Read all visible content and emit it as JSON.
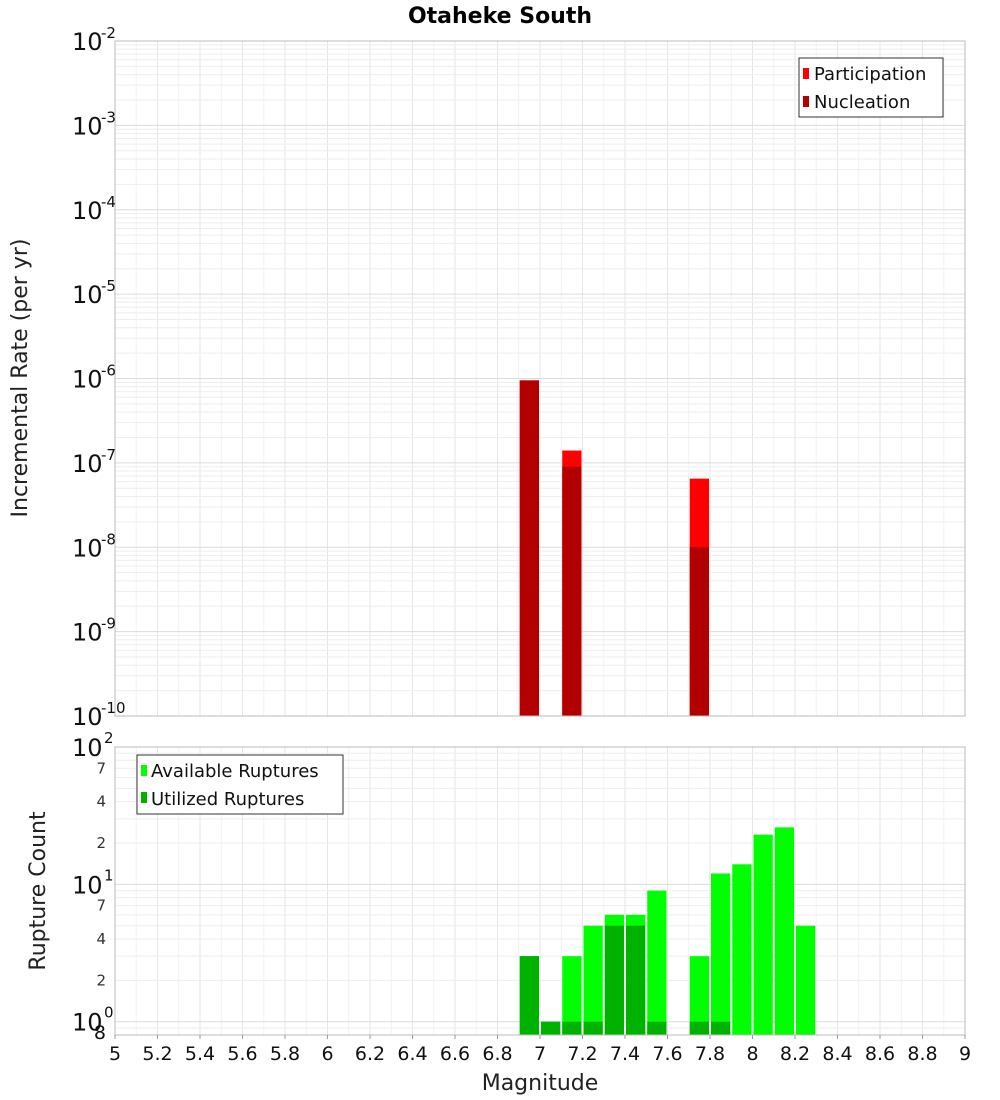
{
  "chart_data": [
    {
      "type": "bar",
      "title": "Otaheke South",
      "ylabel": "Incremental Rate (per yr)",
      "yscale": "log",
      "ylim": [
        1e-10,
        0.01
      ],
      "xlim": [
        5,
        9
      ],
      "bar_width": 0.1,
      "y_tick_exponents": [
        "-10",
        "-9",
        "-8",
        "-7",
        "-6",
        "-5",
        "-4",
        "-3",
        "-2"
      ],
      "legend": {
        "placement": "top-right",
        "entries": [
          "Participation",
          "Nucleation"
        ]
      },
      "series": [
        {
          "name": "Participation",
          "color": "#ff0000",
          "x": [
            6.95,
            7.15,
            7.75
          ],
          "values": [
            9.5e-07,
            1.4e-07,
            6.5e-08
          ]
        },
        {
          "name": "Nucleation",
          "color": "#b20000",
          "x": [
            6.95,
            7.15,
            7.75
          ],
          "values": [
            9.5e-07,
            9e-08,
            1e-08
          ]
        }
      ],
      "grid": true
    },
    {
      "type": "bar",
      "ylabel": "Rupture Count",
      "xlabel": "Magnitude",
      "yscale": "log",
      "ylim": [
        0.8,
        100
      ],
      "xlim": [
        5,
        9
      ],
      "bar_width": 0.1,
      "y_tick_labels": [
        {
          "value": 100,
          "base": "10",
          "exp": "2"
        },
        {
          "value": 10,
          "base": "10",
          "exp": "1"
        },
        {
          "value": 1,
          "base": "10",
          "exp": "0"
        }
      ],
      "y_minor_labels": [
        {
          "value": 70,
          "label": "7"
        },
        {
          "value": 40,
          "label": "4"
        },
        {
          "value": 20,
          "label": "2"
        },
        {
          "value": 7,
          "label": "7"
        },
        {
          "value": 4,
          "label": "4"
        },
        {
          "value": 2,
          "label": "2"
        },
        {
          "value": 0.8,
          "label": "8"
        }
      ],
      "x_ticks": [
        "5",
        "5.2",
        "5.4",
        "5.6",
        "5.8",
        "6",
        "6.2",
        "6.4",
        "6.6",
        "6.8",
        "7",
        "7.2",
        "7.4",
        "7.6",
        "7.8",
        "8",
        "8.2",
        "8.4",
        "8.6",
        "8.8",
        "9"
      ],
      "legend": {
        "placement": "top-left",
        "entries": [
          "Available Ruptures",
          "Utilized Ruptures"
        ]
      },
      "series": [
        {
          "name": "Available Ruptures",
          "color": "#00ff00",
          "x": [
            6.95,
            7.05,
            7.15,
            7.25,
            7.35,
            7.45,
            7.55,
            7.75,
            7.85,
            7.95,
            8.05,
            8.15,
            8.25
          ],
          "values": [
            3,
            1,
            3,
            5,
            6,
            6,
            9,
            3,
            12,
            14,
            23,
            26,
            5
          ]
        },
        {
          "name": "Utilized Ruptures",
          "color": "#00b200",
          "x": [
            6.95,
            7.05,
            7.15,
            7.25,
            7.35,
            7.45,
            7.55,
            7.75,
            7.85
          ],
          "values": [
            3,
            1,
            1,
            1,
            5,
            5,
            1,
            1,
            1
          ]
        }
      ],
      "grid": true
    }
  ]
}
